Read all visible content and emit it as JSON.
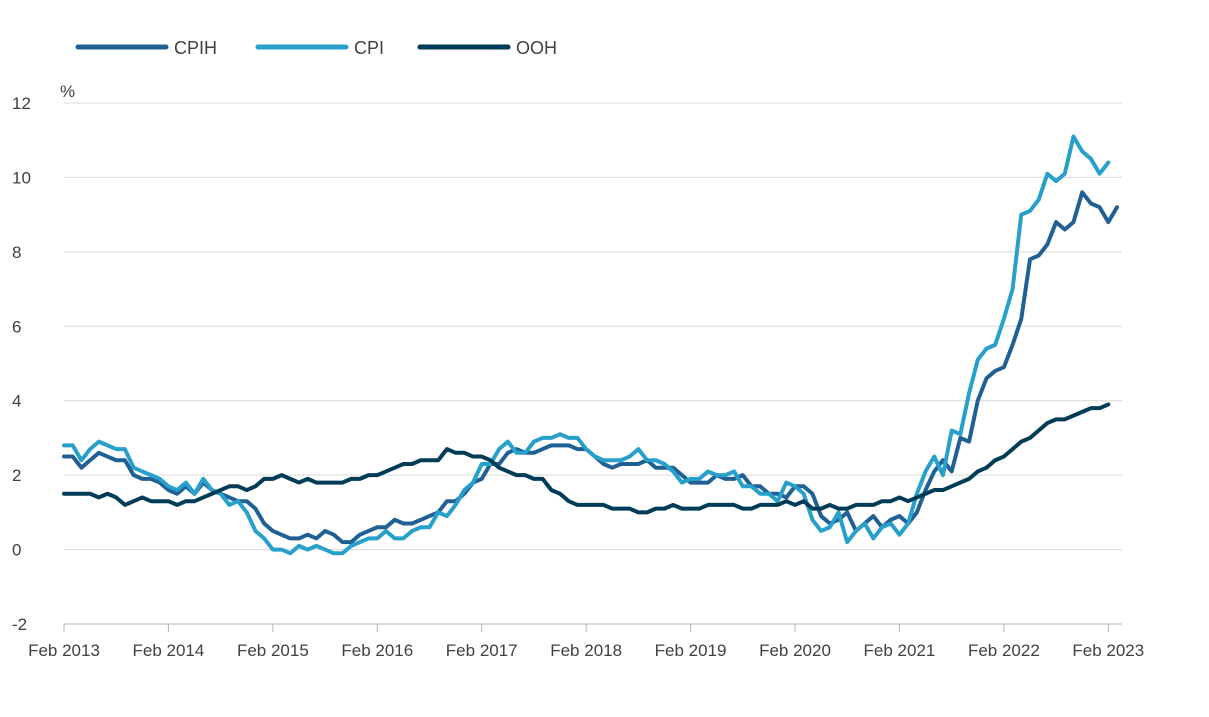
{
  "chart_data": {
    "type": "line",
    "title": "",
    "ylabel": "%",
    "xlabel": "",
    "ylim": [
      -2,
      12
    ],
    "yticks": [
      -2,
      0,
      2,
      4,
      6,
      8,
      10,
      12
    ],
    "x_start": "Feb 2013",
    "x_end": "Feb 2023",
    "x_tick_labels": [
      "Feb 2013",
      "Feb 2014",
      "Feb 2015",
      "Feb 2016",
      "Feb 2017",
      "Feb 2018",
      "Feb 2019",
      "Feb 2020",
      "Feb 2021",
      "Feb 2022",
      "Feb 2023"
    ],
    "grid": "horizontal",
    "legend": "top-left",
    "series": [
      {
        "name": "CPIH",
        "color": "#206095",
        "values": [
          2.5,
          2.5,
          2.2,
          2.4,
          2.6,
          2.5,
          2.4,
          2.4,
          2.0,
          1.9,
          1.9,
          1.8,
          1.6,
          1.5,
          1.7,
          1.5,
          1.8,
          1.6,
          1.5,
          1.4,
          1.3,
          1.3,
          1.1,
          0.7,
          0.5,
          0.4,
          0.3,
          0.3,
          0.4,
          0.3,
          0.5,
          0.4,
          0.2,
          0.2,
          0.4,
          0.5,
          0.6,
          0.6,
          0.8,
          0.7,
          0.7,
          0.8,
          0.9,
          1.0,
          1.3,
          1.3,
          1.5,
          1.8,
          1.9,
          2.3,
          2.3,
          2.6,
          2.7,
          2.6,
          2.6,
          2.7,
          2.8,
          2.8,
          2.8,
          2.7,
          2.7,
          2.5,
          2.3,
          2.2,
          2.3,
          2.3,
          2.3,
          2.4,
          2.2,
          2.2,
          2.2,
          2.0,
          1.8,
          1.8,
          1.8,
          2.0,
          1.9,
          1.9,
          2.0,
          1.7,
          1.7,
          1.5,
          1.5,
          1.4,
          1.7,
          1.7,
          1.5,
          0.9,
          0.7,
          0.8,
          1.0,
          0.5,
          0.7,
          0.9,
          0.6,
          0.8,
          0.9,
          0.7,
          1.0,
          1.6,
          2.1,
          2.4,
          2.1,
          3.0,
          2.9,
          4.0,
          4.6,
          4.8,
          4.9,
          5.5,
          6.2,
          7.8,
          7.9,
          8.2,
          8.8,
          8.6,
          8.8,
          9.6,
          9.3,
          9.2,
          8.8,
          9.2
        ]
      },
      {
        "name": "CPI",
        "color": "#27a0cc",
        "values": [
          2.8,
          2.8,
          2.4,
          2.7,
          2.9,
          2.8,
          2.7,
          2.7,
          2.2,
          2.1,
          2.0,
          1.9,
          1.7,
          1.6,
          1.8,
          1.5,
          1.9,
          1.6,
          1.5,
          1.2,
          1.3,
          1.0,
          0.5,
          0.3,
          0.0,
          0.0,
          -0.1,
          0.1,
          0.0,
          0.1,
          0.0,
          -0.1,
          -0.1,
          0.1,
          0.2,
          0.3,
          0.3,
          0.5,
          0.3,
          0.3,
          0.5,
          0.6,
          0.6,
          1.0,
          0.9,
          1.2,
          1.6,
          1.8,
          2.3,
          2.3,
          2.7,
          2.9,
          2.6,
          2.6,
          2.9,
          3.0,
          3.0,
          3.1,
          3.0,
          3.0,
          2.7,
          2.5,
          2.4,
          2.4,
          2.4,
          2.5,
          2.7,
          2.4,
          2.4,
          2.3,
          2.1,
          1.8,
          1.9,
          1.9,
          2.1,
          2.0,
          2.0,
          2.1,
          1.7,
          1.7,
          1.5,
          1.5,
          1.3,
          1.8,
          1.7,
          1.5,
          0.8,
          0.5,
          0.6,
          1.0,
          0.2,
          0.5,
          0.7,
          0.3,
          0.6,
          0.7,
          0.4,
          0.7,
          1.5,
          2.1,
          2.5,
          2.0,
          3.2,
          3.1,
          4.2,
          5.1,
          5.4,
          5.5,
          6.2,
          7.0,
          9.0,
          9.1,
          9.4,
          10.1,
          9.9,
          10.1,
          11.1,
          10.7,
          10.5,
          10.1,
          10.4
        ]
      },
      {
        "name": "OOH",
        "color": "#003c57",
        "values": [
          1.5,
          1.5,
          1.5,
          1.5,
          1.4,
          1.5,
          1.4,
          1.2,
          1.3,
          1.4,
          1.3,
          1.3,
          1.3,
          1.2,
          1.3,
          1.3,
          1.4,
          1.5,
          1.6,
          1.7,
          1.7,
          1.6,
          1.7,
          1.9,
          1.9,
          2.0,
          1.9,
          1.8,
          1.9,
          1.8,
          1.8,
          1.8,
          1.8,
          1.9,
          1.9,
          2.0,
          2.0,
          2.1,
          2.2,
          2.3,
          2.3,
          2.4,
          2.4,
          2.4,
          2.7,
          2.6,
          2.6,
          2.5,
          2.5,
          2.4,
          2.2,
          2.1,
          2.0,
          2.0,
          1.9,
          1.9,
          1.6,
          1.5,
          1.3,
          1.2,
          1.2,
          1.2,
          1.2,
          1.1,
          1.1,
          1.1,
          1.0,
          1.0,
          1.1,
          1.1,
          1.2,
          1.1,
          1.1,
          1.1,
          1.2,
          1.2,
          1.2,
          1.2,
          1.1,
          1.1,
          1.2,
          1.2,
          1.2,
          1.3,
          1.2,
          1.3,
          1.1,
          1.1,
          1.2,
          1.1,
          1.1,
          1.2,
          1.2,
          1.2,
          1.3,
          1.3,
          1.4,
          1.3,
          1.4,
          1.5,
          1.6,
          1.6,
          1.7,
          1.8,
          1.9,
          2.1,
          2.2,
          2.4,
          2.5,
          2.7,
          2.9,
          3.0,
          3.2,
          3.4,
          3.5,
          3.5,
          3.6,
          3.7,
          3.8,
          3.8,
          3.9
        ]
      }
    ]
  }
}
